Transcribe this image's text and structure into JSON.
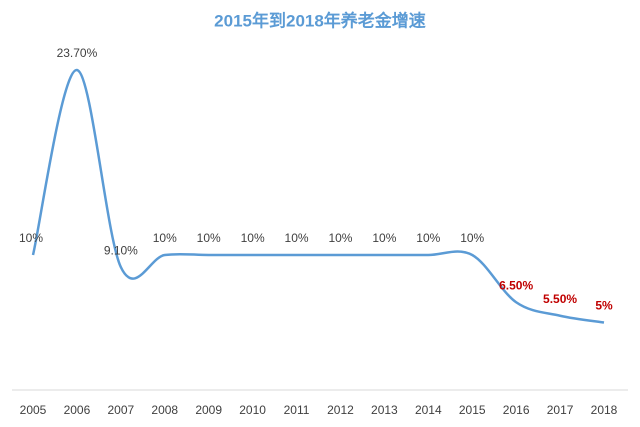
{
  "chart_data": {
    "type": "line",
    "title": "2015年到2018年养老金增速",
    "title_color": "#5b9bd5",
    "categories": [
      "2005",
      "2006",
      "2007",
      "2008",
      "2009",
      "2010",
      "2011",
      "2012",
      "2013",
      "2014",
      "2015",
      "2016",
      "2017",
      "2018"
    ],
    "series": [
      {
        "color": "#5b9bd5",
        "values": [
          10,
          23.7,
          9.1,
          10,
          10,
          10,
          10,
          10,
          10,
          10,
          10,
          6.5,
          5.5,
          5
        ],
        "value_labels": [
          "10%",
          "23.70%",
          "9.10%",
          "10%",
          "10%",
          "10%",
          "10%",
          "10%",
          "10%",
          "10%",
          "10%",
          "6.50%",
          "5.50%",
          "5%"
        ],
        "value_label_colors": [
          "#404040",
          "#404040",
          "#404040",
          "#404040",
          "#404040",
          "#404040",
          "#404040",
          "#404040",
          "#404040",
          "#404040",
          "#404040",
          "#c00000",
          "#c00000",
          "#c00000"
        ]
      }
    ],
    "smooth": true
  }
}
